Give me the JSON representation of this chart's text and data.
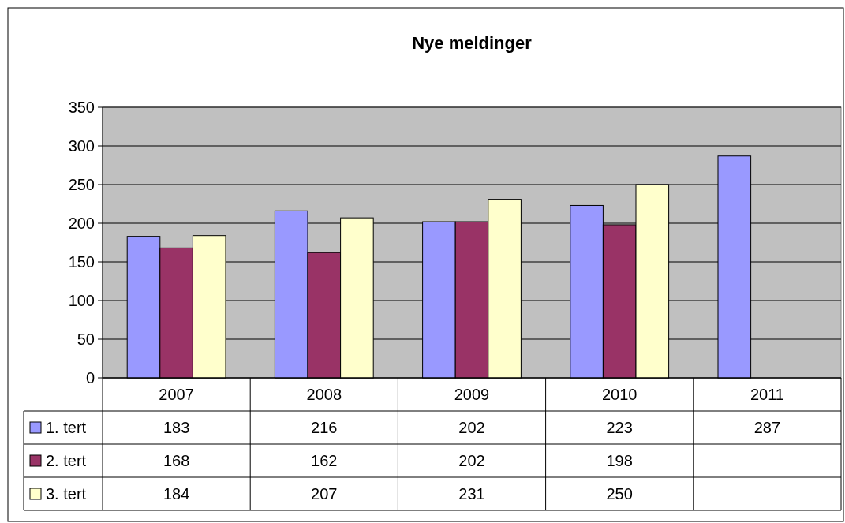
{
  "chart_data": {
    "type": "bar",
    "title": "Nye meldinger",
    "categories": [
      "2007",
      "2008",
      "2009",
      "2010",
      "2011"
    ],
    "series": [
      {
        "name": "1. tert",
        "color": "#9999ff",
        "values": [
          183,
          216,
          202,
          223,
          287
        ]
      },
      {
        "name": "2. tert",
        "color": "#993366",
        "values": [
          168,
          162,
          202,
          198,
          null
        ]
      },
      {
        "name": "3. tert",
        "color": "#ffffcc",
        "values": [
          184,
          207,
          231,
          250,
          null
        ]
      }
    ],
    "ylim": [
      0,
      350
    ],
    "yticks": [
      0,
      50,
      100,
      150,
      200,
      250,
      300,
      350
    ],
    "grid": "y",
    "legend": "bottom left",
    "data_labels": true
  }
}
